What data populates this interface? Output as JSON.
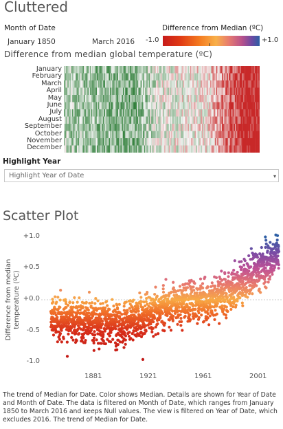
{
  "dashboard": {
    "title": "Cluttered",
    "filter_label": "Month of Date",
    "range_start": "January 1850",
    "range_end": "March 2016",
    "color_legend_title": "Difference from Median (ºC)",
    "color_legend_min": "-1.0",
    "color_legend_max": "+1.0",
    "heatmap_title": "Difference from median global temperature (ºC)",
    "months": [
      "January",
      "February",
      "March",
      "April",
      "May",
      "June",
      "July",
      "August",
      "September",
      "October",
      "November",
      "December"
    ],
    "highlight_label": "Highlight Year",
    "highlight_placeholder": "Highlight Year of Date",
    "scatter_title": "Scatter Plot",
    "scatter_ylabel": "Difference from median temperature (ºC)",
    "caption": "The trend of Median for Date.  Color shows Median.  Details are shown for Year of Date and Month of Date. The data is filtered on Month of Date, which ranges from January 1850 to March 2016 and keeps Null values. The view is filtered on Year of Date, which excludes 2016. The trend of Median for Date.",
    "colors": {
      "cold": "#2e7d32",
      "warm": "#c62828",
      "median_line": "#bbbbbb"
    }
  },
  "chart_data": [
    {
      "type": "heatmap",
      "title": "Difference from median global temperature (ºC)",
      "y_categories": [
        "January",
        "February",
        "March",
        "April",
        "May",
        "June",
        "July",
        "August",
        "September",
        "October",
        "November",
        "December"
      ],
      "x_range": [
        1850,
        2015
      ],
      "value_range": [
        -1.0,
        1.0
      ],
      "trend_by_decade": [
        {
          "start": 1850,
          "value": -0.2
        },
        {
          "start": 1870,
          "value": -0.25
        },
        {
          "start": 1890,
          "value": -0.3
        },
        {
          "start": 1910,
          "value": -0.35
        },
        {
          "start": 1930,
          "value": -0.05
        },
        {
          "start": 1950,
          "value": 0.0
        },
        {
          "start": 1970,
          "value": 0.05
        },
        {
          "start": 1990,
          "value": 0.45
        },
        {
          "start": 2005,
          "value": 0.7
        }
      ]
    },
    {
      "type": "scatter",
      "title": "Scatter Plot",
      "ylabel": "Difference from median temperature (ºC)",
      "xlabel": "",
      "xlim": [
        1850,
        2016
      ],
      "ylim": [
        -1.05,
        1.05
      ],
      "yticks": [
        "+1.0",
        "+0.5",
        "+0.0",
        "-0.5",
        "-1.0"
      ],
      "ytick_values": [
        1.0,
        0.5,
        0.0,
        -0.5,
        -1.0
      ],
      "xticks": [
        "1881",
        "1921",
        "1961",
        "2001"
      ],
      "xtick_values": [
        1881,
        1921,
        1961,
        2001
      ],
      "trend": [
        {
          "year": 1850,
          "value": -0.3
        },
        {
          "year": 1880,
          "value": -0.35
        },
        {
          "year": 1900,
          "value": -0.4
        },
        {
          "year": 1915,
          "value": -0.3
        },
        {
          "year": 1940,
          "value": -0.05
        },
        {
          "year": 1950,
          "value": -0.05
        },
        {
          "year": 1970,
          "value": 0.0
        },
        {
          "year": 1990,
          "value": 0.3
        },
        {
          "year": 2000,
          "value": 0.45
        },
        {
          "year": 2015,
          "value": 0.75
        }
      ],
      "extremes": [
        {
          "year": 1862,
          "value": -0.9
        },
        {
          "year": 1878,
          "value": 0.12
        },
        {
          "year": 1917,
          "value": -0.95
        },
        {
          "year": 2015,
          "value": 1.02
        }
      ]
    }
  ]
}
